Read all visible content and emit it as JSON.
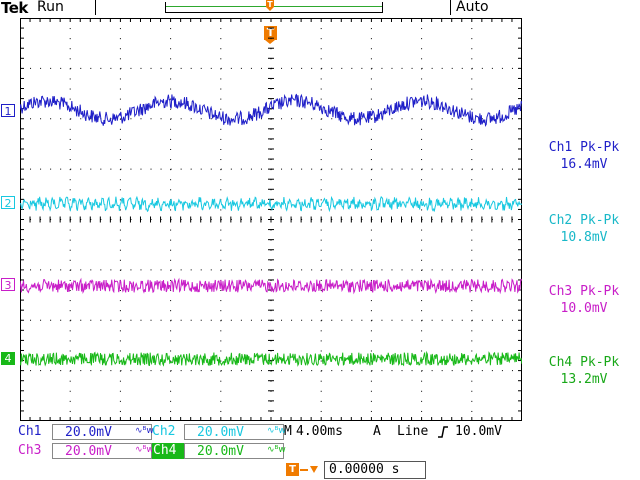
{
  "header": {
    "brand": "Tek",
    "acquisition_state": "Run",
    "trigger_mode": "Auto",
    "trigger_position_marker": "T"
  },
  "channels": [
    {
      "id": "1",
      "color": "#1f1fc8",
      "trace": "sine",
      "pk_pk_label": "Ch1 Pk-Pk",
      "pk_pk_value": "16.4mV",
      "scale_label": "Ch1",
      "scale": "20.0mV"
    },
    {
      "id": "2",
      "color": "#18c8e0",
      "trace": "ripple",
      "pk_pk_label": "Ch2 Pk-Pk",
      "pk_pk_value": "10.8mV",
      "scale_label": "Ch2",
      "scale": "20.0mV"
    },
    {
      "id": "3",
      "color": "#c81ec8",
      "trace": "noise",
      "pk_pk_label": "Ch3 Pk-Pk",
      "pk_pk_value": "10.0mV",
      "scale_label": "Ch3",
      "scale": "20.0mV"
    },
    {
      "id": "4",
      "color": "#18b818",
      "trace": "noise",
      "pk_pk_label": "Ch4 Pk-Pk",
      "pk_pk_value": "13.2mV",
      "scale_label": "Ch4",
      "scale": "20.0mV"
    }
  ],
  "timebase": {
    "label": "M",
    "value": "4.00ms"
  },
  "trigger": {
    "source_prefix": "A",
    "source": "Line",
    "slope_icon": "rising-edge-icon",
    "level": "10.0mV"
  },
  "trigger_time": {
    "marker": "T",
    "value": "0.00000 s"
  },
  "coupling_icon": "ac-coupling-bw-icon",
  "colors": {
    "accent": "#f07b00",
    "grid": "#000000"
  }
}
